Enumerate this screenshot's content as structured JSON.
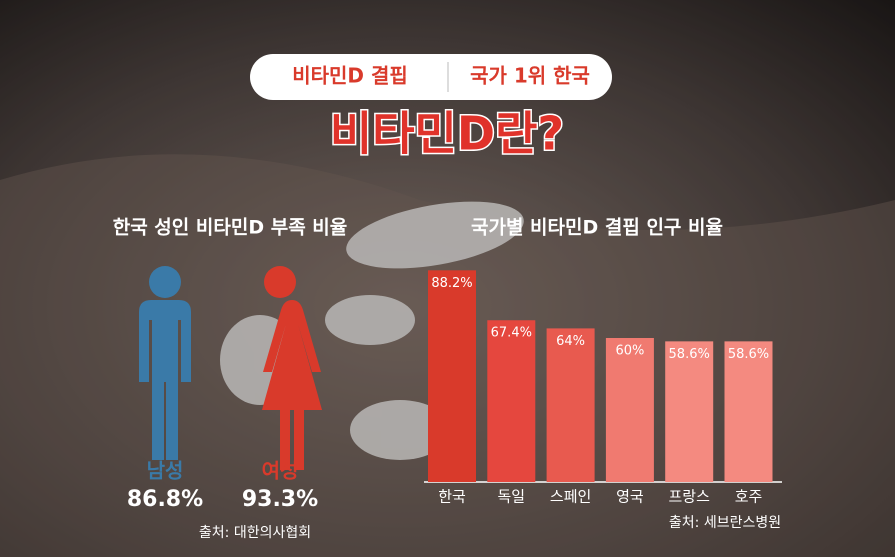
{
  "header": {
    "tag_left": "비타민D 결핍",
    "tag_right": "국가 1위 한국",
    "title": "비타민D란?"
  },
  "gender_panel": {
    "title": "한국 성인 비타민D 부족 비율",
    "items": [
      {
        "label": "남성",
        "value_text": "86.8%",
        "color": "#3a7aa8"
      },
      {
        "label": "여성",
        "value_text": "93.3%",
        "color": "#d93a2b"
      }
    ],
    "source": "출처: 대한의사협회"
  },
  "chart_data": {
    "type": "bar",
    "title": "국가별 비타민D 결핍 인구 비율",
    "categories": [
      "한국",
      "독일",
      "스페인",
      "영국",
      "프랑스",
      "호주"
    ],
    "values": [
      88.2,
      67.4,
      64,
      60,
      58.6,
      58.6
    ],
    "value_labels": [
      "88.2%",
      "67.4%",
      "64%",
      "60%",
      "58.6%",
      "58.6%"
    ],
    "colors": [
      "#d93a2b",
      "#e5473e",
      "#e85a4f",
      "#f07a70",
      "#f48a80",
      "#f48a80"
    ],
    "source": "출처: 세브란스병원"
  }
}
